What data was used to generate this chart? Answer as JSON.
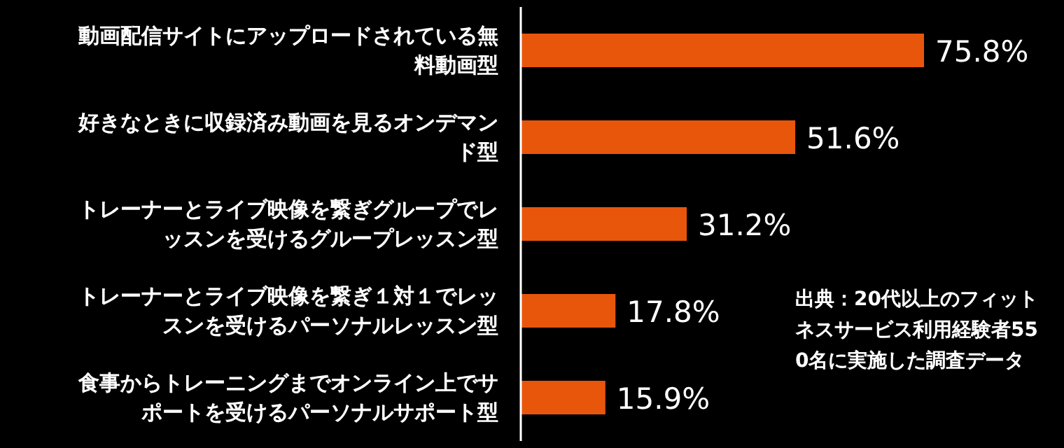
{
  "chart_data": {
    "type": "bar",
    "orientation": "horizontal",
    "categories": [
      "動画配信サイトにアップロードされている無料動画型",
      "好きなときに収録済み動画を見るオンデマンド型",
      "トレーナーとライブ映像を繋ぎグループでレッスンを受けるグループレッスン型",
      "トレーナーとライブ映像を繋ぎ１対１でレッスンを受けるパーソナルレッスン型",
      "食事からトレーニングまでオンライン上でサポートを受けるパーソナルサポート型"
    ],
    "values": [
      75.8,
      51.6,
      31.2,
      17.8,
      15.9
    ],
    "value_labels": [
      "75.8%",
      "51.6%",
      "31.2%",
      "17.8%",
      "15.9%"
    ],
    "color": "#e8560c",
    "annotations": [
      "出典：20代以上のフィットネスサービス利用経験者550名に実施した調査データ"
    ]
  }
}
